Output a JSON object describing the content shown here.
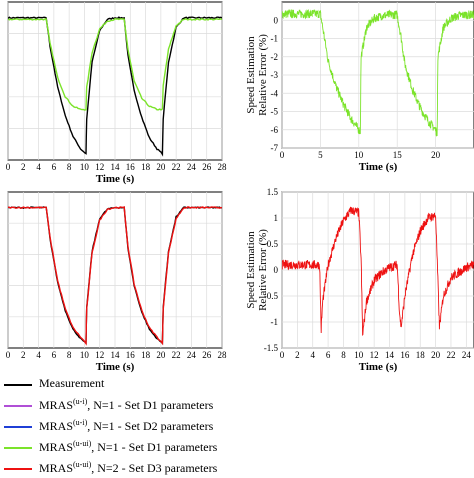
{
  "figure": {
    "colors": {
      "measurement": "#000000",
      "purple": "#b04fd6",
      "blue": "#1f3fd6",
      "green": "#7be32a",
      "red": "#ee1111"
    },
    "legend": [
      {
        "key": "measurement",
        "label": "Measurement",
        "sup": "",
        "tail": ""
      },
      {
        "key": "purple",
        "label": "MRAS",
        "sup": "(u-i)",
        "tail": ",  N=1 - Set D1 parameters"
      },
      {
        "key": "blue",
        "label": "MRAS",
        "sup": "(u-i)",
        "tail": ",  N=1 - Set D2 parameters"
      },
      {
        "key": "green",
        "label": "MRAS",
        "sup": "(u-ui)",
        "tail": ",  N=1 - Set D1 parameters"
      },
      {
        "key": "red",
        "label": "MRAS",
        "sup": "(u-ui)",
        "tail": ",  N=2 - Set D3 parameters"
      }
    ]
  },
  "chart_data": [
    {
      "id": "top-left",
      "type": "line",
      "xlabel": "Time (s)",
      "ylabel": "",
      "xlim": [
        0,
        28
      ],
      "xticks": [
        0,
        2,
        4,
        6,
        8,
        10,
        12,
        14,
        16,
        18,
        20,
        22,
        24,
        26,
        28
      ],
      "ylim": [
        0,
        1
      ],
      "yticks": [],
      "grid": true,
      "series": [
        {
          "key": "measurement",
          "x": [
            0,
            5,
            5.5,
            6.5,
            7.5,
            8.5,
            9.5,
            10.2,
            10.3,
            11,
            12,
            13,
            14,
            15.2,
            15.7,
            16.5,
            17.5,
            18.5,
            19.5,
            20.2,
            20.3,
            21,
            22,
            23,
            28
          ],
          "y": [
            0.9,
            0.9,
            0.72,
            0.46,
            0.28,
            0.15,
            0.07,
            0.04,
            0.26,
            0.62,
            0.82,
            0.89,
            0.9,
            0.9,
            0.66,
            0.44,
            0.27,
            0.14,
            0.07,
            0.04,
            0.26,
            0.62,
            0.84,
            0.9,
            0.9
          ]
        },
        {
          "key": "green",
          "x": [
            0,
            5,
            5.5,
            6.5,
            7.5,
            8.5,
            9.5,
            10.2,
            10.3,
            11,
            12,
            13,
            14,
            15.2,
            15.7,
            16.5,
            17.5,
            18.5,
            19.5,
            20.2,
            20.3,
            21,
            22,
            23,
            28
          ],
          "y": [
            0.89,
            0.89,
            0.74,
            0.52,
            0.4,
            0.34,
            0.32,
            0.32,
            0.46,
            0.68,
            0.83,
            0.88,
            0.89,
            0.89,
            0.7,
            0.5,
            0.39,
            0.34,
            0.32,
            0.32,
            0.47,
            0.7,
            0.85,
            0.89,
            0.89
          ]
        }
      ]
    },
    {
      "id": "top-right",
      "type": "line",
      "xlabel": "Time (s)",
      "ylabel": "Speed Estimation Relative Error (%)",
      "xlim": [
        0,
        25
      ],
      "xticks": [
        0,
        5,
        10,
        15,
        20
      ],
      "ylim": [
        -7,
        1
      ],
      "yticks": [
        -7,
        -6,
        -5,
        -4,
        -3,
        -2,
        -1,
        0
      ],
      "grid": true,
      "series": [
        {
          "key": "green",
          "x": [
            0,
            5,
            5.5,
            6,
            7,
            8,
            9,
            10,
            10.2,
            10.3,
            11,
            12,
            13,
            14,
            15,
            15.5,
            16,
            17,
            18,
            19,
            20,
            20.2,
            20.3,
            21,
            22,
            23,
            24,
            25
          ],
          "y": [
            0.35,
            0.35,
            -0.9,
            -2.2,
            -3.6,
            -4.6,
            -5.4,
            -6.0,
            -6.1,
            -2.0,
            -0.4,
            0.1,
            0.25,
            0.3,
            0.3,
            -0.9,
            -2.4,
            -3.8,
            -4.8,
            -5.5,
            -6.0,
            -6.2,
            -2.0,
            -0.4,
            0.1,
            0.25,
            0.3,
            0.3
          ]
        }
      ]
    },
    {
      "id": "bottom-left",
      "type": "line",
      "xlabel": "Time (s)",
      "ylabel": "",
      "xlim": [
        0,
        28
      ],
      "xticks": [
        0,
        2,
        4,
        6,
        8,
        10,
        12,
        14,
        16,
        18,
        20,
        22,
        24,
        26,
        28
      ],
      "ylim": [
        0,
        1
      ],
      "yticks": [],
      "grid": true,
      "series": [
        {
          "key": "measurement",
          "x": [
            0,
            5,
            5.5,
            6.5,
            7.5,
            8.5,
            9.5,
            10.2,
            10.3,
            11,
            12,
            13,
            14,
            15.2,
            15.7,
            16.5,
            17.5,
            18.5,
            19.5,
            20.2,
            20.3,
            21,
            22,
            23,
            28
          ],
          "y": [
            0.9,
            0.9,
            0.7,
            0.42,
            0.24,
            0.12,
            0.06,
            0.03,
            0.26,
            0.62,
            0.83,
            0.89,
            0.9,
            0.9,
            0.64,
            0.4,
            0.23,
            0.12,
            0.06,
            0.03,
            0.26,
            0.62,
            0.84,
            0.9,
            0.9
          ]
        },
        {
          "key": "red",
          "x": [
            0,
            5,
            5.5,
            6.5,
            7.5,
            8.5,
            9.5,
            10.2,
            10.3,
            11,
            12,
            13,
            14,
            15.2,
            15.7,
            16.5,
            17.5,
            18.5,
            19.5,
            20.2,
            20.3,
            21,
            22,
            23,
            28
          ],
          "y": [
            0.9,
            0.9,
            0.71,
            0.43,
            0.25,
            0.13,
            0.07,
            0.03,
            0.25,
            0.61,
            0.82,
            0.89,
            0.9,
            0.9,
            0.65,
            0.41,
            0.24,
            0.13,
            0.07,
            0.03,
            0.25,
            0.61,
            0.83,
            0.9,
            0.9
          ]
        }
      ]
    },
    {
      "id": "bottom-right",
      "type": "line",
      "xlabel": "Time (s)",
      "ylabel": "Speed Estimation Relative Error (%)",
      "xlim": [
        0,
        25
      ],
      "xticks": [
        0,
        2,
        4,
        6,
        8,
        10,
        12,
        14,
        16,
        18,
        20,
        22,
        24
      ],
      "ylim": [
        -1.5,
        1.5
      ],
      "yticks": [
        -1.5,
        -1,
        -0.5,
        0,
        0.5,
        1,
        1.5
      ],
      "grid": true,
      "series": [
        {
          "key": "red",
          "x": [
            0,
            4.9,
            5.1,
            5.3,
            6,
            7,
            8,
            9,
            10,
            10.3,
            10.5,
            11,
            12,
            13,
            14,
            15,
            15.3,
            15.5,
            16,
            17,
            18,
            19,
            20,
            20.3,
            20.5,
            21,
            22,
            23,
            24,
            25
          ],
          "y": [
            0.1,
            0.1,
            -1.15,
            -0.6,
            0.1,
            0.6,
            0.95,
            1.15,
            1.1,
            0.2,
            -1.25,
            -0.6,
            -0.2,
            -0.05,
            0.05,
            0.1,
            -0.8,
            -1.1,
            -0.5,
            0.3,
            0.75,
            1.0,
            1.05,
            -0.2,
            -1.1,
            -0.5,
            -0.15,
            -0.05,
            0.05,
            0.1
          ]
        }
      ]
    }
  ]
}
